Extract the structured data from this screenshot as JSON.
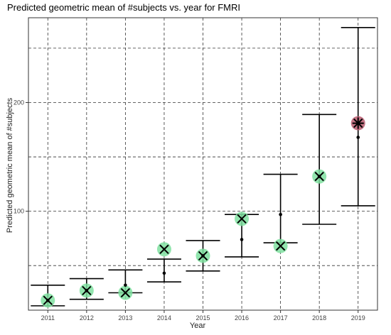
{
  "chart_data": {
    "type": "scatter",
    "title": "Predicted geometric mean of #subjects vs. year for FMRI",
    "xlabel": "Year",
    "ylabel": "Predicted geometric mean of #subjects",
    "categories": [
      "2011",
      "2012",
      "2013",
      "2014",
      "2015",
      "2016",
      "2017",
      "2018",
      "2019"
    ],
    "y_ticks": [
      100,
      200
    ],
    "y_minor_gridlines": [
      50,
      150,
      250
    ],
    "ylim": [
      9,
      278
    ],
    "grid": true,
    "predicted": [
      18,
      27,
      25,
      65,
      59,
      93,
      68,
      132,
      181
    ],
    "observed": [
      18,
      27,
      32,
      43,
      59,
      74,
      97,
      132,
      168
    ],
    "ci_lower": [
      13,
      19,
      25,
      35,
      45,
      58,
      71,
      88,
      105
    ],
    "ci_upper": [
      32,
      38,
      46,
      56,
      73,
      97,
      134,
      189,
      269
    ],
    "point_colors": [
      "#7fe0a0",
      "#7fe0a0",
      "#7fe0a0",
      "#7fe0a0",
      "#7fe0a0",
      "#7fe0a0",
      "#7fe0a0",
      "#7fe0a0",
      "#b85a6e"
    ],
    "point_markers": [
      "x",
      "x",
      "x",
      "x",
      "x",
      "x",
      "x",
      "x",
      "star"
    ]
  }
}
